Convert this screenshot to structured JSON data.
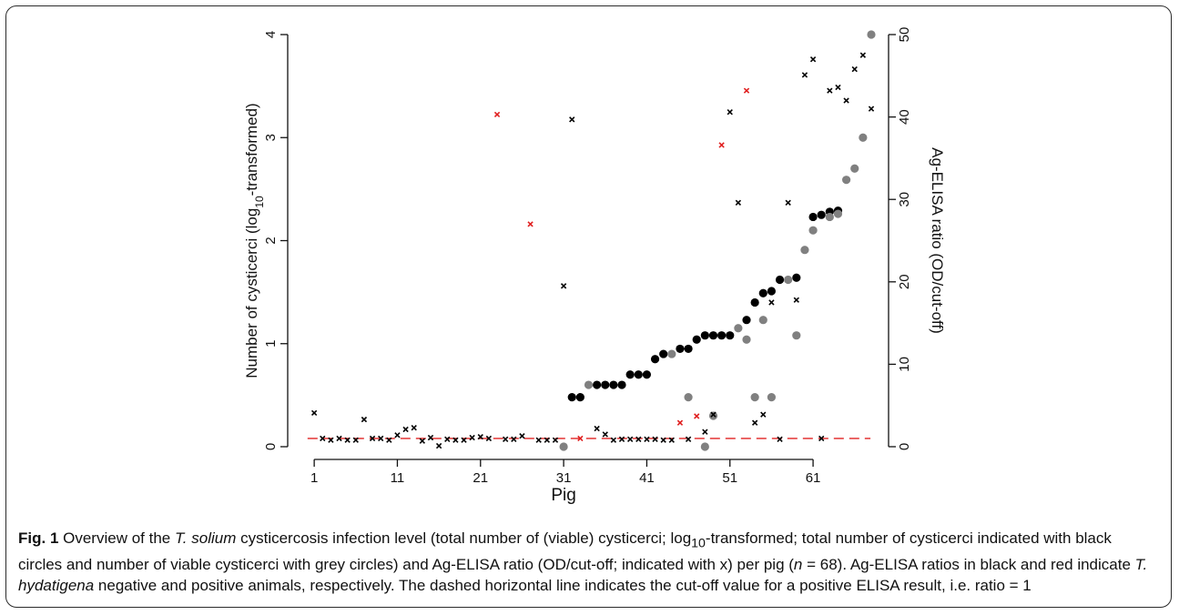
{
  "figure": {
    "caption_label": "Fig. 1",
    "caption": {
      "p1": " Overview of the ",
      "i1": "T. solium",
      "p2": " cysticercosis infection level (total number of (viable) cysticerci; log",
      "sub": "10",
      "p3": "-transformed; total number of cysticerci indicated with black circles and number of viable cysticerci with grey circles) and Ag-ELISA ratio (OD/cut-off; indicated with x) per pig (",
      "i2": "n",
      "p4": " = 68). Ag-ELISA ratios in black and red indicate ",
      "i3": "T. hydatigena",
      "p5": " negative and positive animals, respectively. The dashed horizontal line indicates the cut-off value for a positive ELISA result, i.e. ratio = 1"
    }
  },
  "chart_data": {
    "type": "scatter",
    "xlabel": "Pig",
    "ylabel_left": "Number of cysticerci (log10-transformed)",
    "ylabel_right": "Ag-ELISA ratio (OD/cut-off)",
    "xlim": [
      0,
      68
    ],
    "ylim_left": [
      0,
      4
    ],
    "ylim_right": [
      0,
      50
    ],
    "x_ticks": [
      1,
      11,
      21,
      31,
      41,
      51,
      61
    ],
    "y_ticks_left": [
      0,
      1,
      2,
      3,
      4
    ],
    "y_ticks_right": [
      0,
      10,
      20,
      30,
      40,
      50
    ],
    "cutoff_ratio": 1,
    "colors": {
      "total": "#000000",
      "viable": "#808080",
      "elisa_neg": "#000000",
      "elisa_pos": "#e02020",
      "cutoff": "#e02020"
    },
    "series": [
      {
        "name": "total number of cysticerci",
        "marker": "circle",
        "x": [
          32,
          33,
          35,
          36,
          37,
          38,
          39,
          40,
          41,
          42,
          43,
          45,
          46,
          47,
          48,
          49,
          50,
          51,
          53,
          54,
          55,
          56,
          57,
          59,
          61,
          62,
          63,
          64
        ],
        "y": [
          0.48,
          0.48,
          0.6,
          0.6,
          0.6,
          0.6,
          0.7,
          0.7,
          0.7,
          0.85,
          0.9,
          0.95,
          0.95,
          1.04,
          1.08,
          1.08,
          1.08,
          1.08,
          1.23,
          1.4,
          1.49,
          1.51,
          1.62,
          1.64,
          2.23,
          2.25,
          2.28,
          2.29
        ]
      },
      {
        "name": "number of viable cysticerci",
        "marker": "circle",
        "x": [
          31,
          34,
          44,
          46,
          48,
          49,
          52,
          53,
          54,
          55,
          56,
          58,
          59,
          60,
          61,
          63,
          64,
          65,
          66,
          67,
          68
        ],
        "y": [
          0,
          0.6,
          0.9,
          0.48,
          0,
          0.3,
          1.15,
          1.04,
          0.48,
          1.23,
          0.48,
          1.62,
          1.08,
          1.91,
          2.1,
          2.23,
          2.26,
          2.59,
          2.7,
          3,
          4
        ]
      },
      {
        "name": "Ag-ELISA ratio (T. hydatigena negative)",
        "marker": "x",
        "x": [
          1,
          2,
          3,
          4,
          5,
          6,
          7,
          8,
          9,
          10,
          11,
          12,
          13,
          14,
          15,
          16,
          17,
          18,
          19,
          20,
          21,
          22,
          24,
          25,
          26,
          28,
          29,
          30,
          31,
          32,
          35,
          36,
          37,
          38,
          39,
          40,
          41,
          42,
          43,
          44,
          46,
          48,
          49,
          51,
          52,
          54,
          55,
          56,
          57,
          58,
          59,
          60,
          61,
          62,
          63,
          64,
          65,
          66,
          67,
          68
        ],
        "y": [
          4.1,
          1,
          0.8,
          1,
          0.8,
          0.8,
          3.3,
          1,
          1,
          0.8,
          1.4,
          2.1,
          2.3,
          0.7,
          1.1,
          0.1,
          0.9,
          0.8,
          0.8,
          1.1,
          1.2,
          1,
          0.9,
          0.9,
          1.3,
          0.8,
          0.8,
          0.8,
          19.5,
          39.7,
          2.2,
          1.5,
          0.8,
          0.9,
          0.9,
          0.9,
          0.9,
          0.9,
          0.8,
          0.8,
          0.9,
          1.8,
          3.9,
          40.6,
          29.6,
          2.9,
          3.9,
          17.5,
          0.9,
          29.6,
          17.8,
          45.1,
          47,
          1,
          43.2,
          43.6,
          42,
          45.8,
          47.5,
          41
        ]
      },
      {
        "name": "Ag-ELISA ratio (T. hydatigena positive)",
        "marker": "x",
        "x": [
          23,
          27,
          33,
          45,
          47,
          50,
          53
        ],
        "y": [
          40.3,
          27,
          1,
          2.9,
          3.7,
          36.6,
          43.2
        ]
      }
    ]
  }
}
